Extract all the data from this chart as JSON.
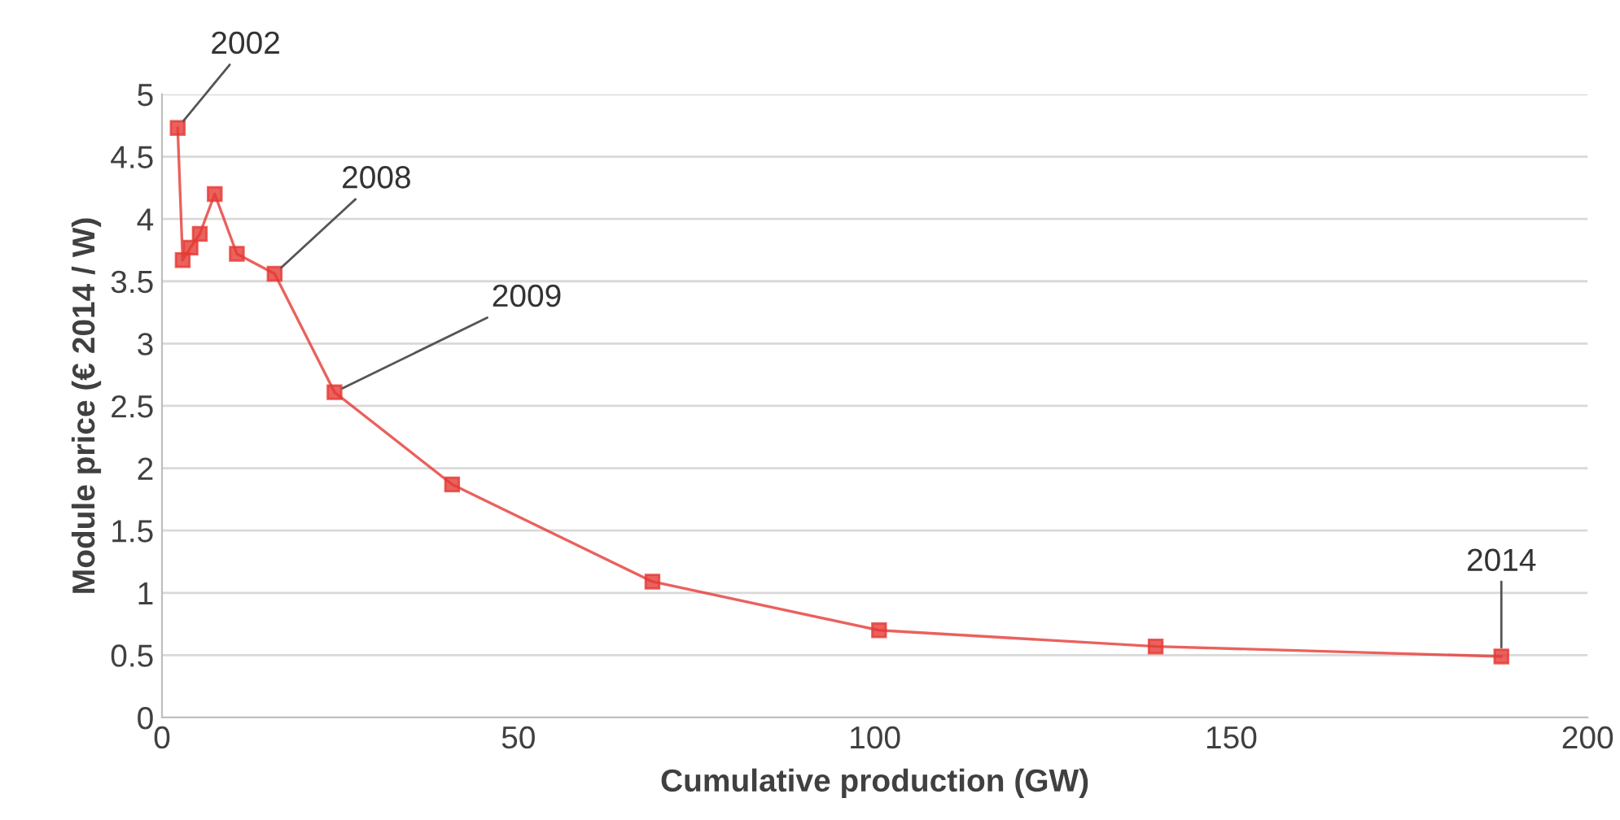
{
  "chart_data": {
    "type": "line",
    "xlabel": "Cumulative production (GW)",
    "ylabel": "Module price (€ 2014 / W)",
    "x": [
      2.2,
      2.9,
      4.0,
      5.3,
      7.4,
      10.5,
      15.8,
      24.2,
      40.7,
      68.8,
      100.6,
      139.4,
      187.9
    ],
    "series": [
      {
        "color": "#e53935",
        "values": [
          4.73,
          3.67,
          3.77,
          3.88,
          4.2,
          3.72,
          3.56,
          2.61,
          1.87,
          1.09,
          0.7,
          0.57,
          0.49
        ]
      }
    ],
    "xlim": [
      0,
      200
    ],
    "xticks": [
      0,
      50,
      100,
      150,
      200
    ],
    "ylim": [
      0,
      5
    ],
    "yticks": [
      0,
      0.5,
      1,
      1.5,
      2,
      2.5,
      3,
      3.5,
      4,
      4.5,
      5
    ],
    "grid": "y",
    "marker": "square",
    "line_style": "solid",
    "legend": false,
    "annotations": [
      {
        "text": "2002",
        "x": 2.2,
        "y": 4.73
      },
      {
        "text": "2008",
        "x": 15.8,
        "y": 3.56
      },
      {
        "text": "2009",
        "x": 24.2,
        "y": 2.61
      },
      {
        "text": "2014",
        "x": 187.9,
        "y": 0.49
      }
    ]
  }
}
